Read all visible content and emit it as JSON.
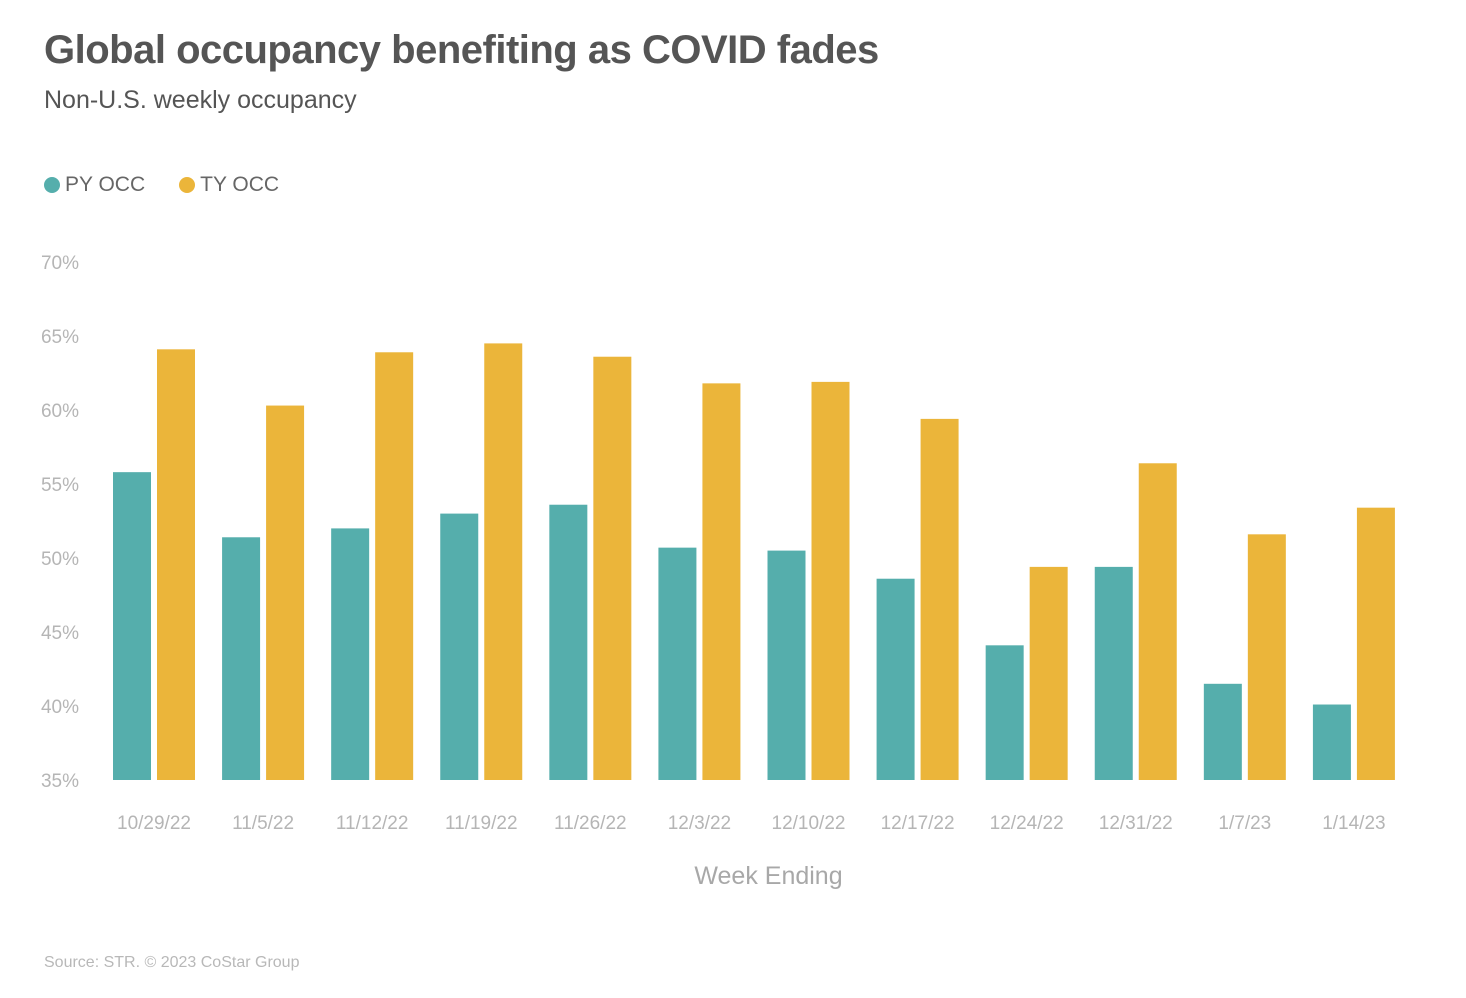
{
  "title": "Global occupancy benefiting as COVID fades",
  "subtitle": "Non-U.S. weekly occupancy",
  "source": "Source: STR. © 2023 CoStar Group",
  "colors": {
    "py": "#55aeac",
    "ty": "#ebb53a",
    "text": "#555555",
    "axis_text": "#b5b5b5"
  },
  "chart_data": {
    "type": "bar",
    "title": "Global occupancy benefiting as COVID fades",
    "subtitle": "Non-U.S. weekly occupancy",
    "xlabel": "Week Ending",
    "ylabel": "",
    "ylim": [
      35,
      70
    ],
    "yticks": [
      35,
      40,
      45,
      50,
      55,
      60,
      65,
      70
    ],
    "ytick_format": "%",
    "grid": false,
    "legend_position": "top-left",
    "categories": [
      "10/29/22",
      "11/5/22",
      "11/12/22",
      "11/19/22",
      "11/26/22",
      "12/3/22",
      "12/10/22",
      "12/17/22",
      "12/24/22",
      "12/31/22",
      "1/7/23",
      "1/14/23"
    ],
    "series": [
      {
        "name": "PY OCC",
        "color": "#55aeac",
        "values": [
          55.8,
          51.4,
          52.0,
          53.0,
          53.6,
          50.7,
          50.5,
          48.6,
          44.1,
          49.4,
          41.5,
          40.1
        ]
      },
      {
        "name": "TY OCC",
        "color": "#ebb53a",
        "values": [
          64.1,
          60.3,
          63.9,
          64.5,
          63.6,
          61.8,
          61.9,
          59.4,
          49.4,
          56.4,
          51.6,
          53.4
        ]
      }
    ]
  }
}
